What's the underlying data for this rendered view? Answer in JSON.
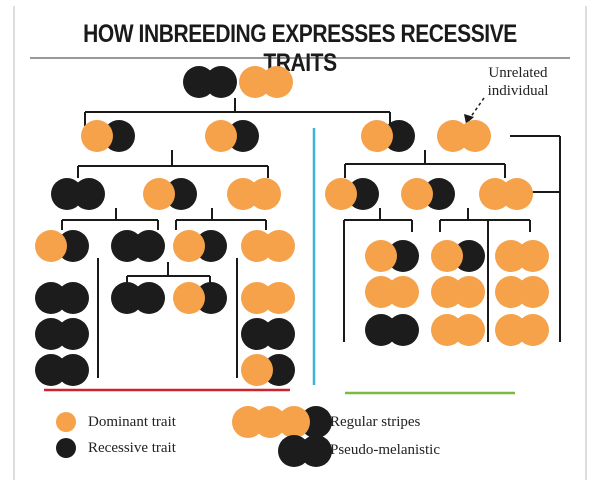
{
  "title": "HOW INBREEDING EXPRESSES RECESSIVE TRAITS",
  "annotation": {
    "line1": "Unrelated",
    "line2": "individual"
  },
  "legend": {
    "dominant": "Dominant trait",
    "recessive": "Recessive trait",
    "regular_stripes": "Regular stripes",
    "pseudo_melanistic": "Pseudo-melanistic"
  },
  "colors": {
    "dominant": "#f5a24a",
    "recessive": "#1c1c1c",
    "divider_blue": "#3db4d6",
    "underline_red": "#c9252d",
    "underline_green": "#77bb3f",
    "line": "#1a1a1a"
  },
  "genotypes": {
    "DD": "Regular stripes (two dominant alleles)",
    "Dr": "Regular stripes (carrier)",
    "rr": "Pseudo-melanistic"
  }
}
